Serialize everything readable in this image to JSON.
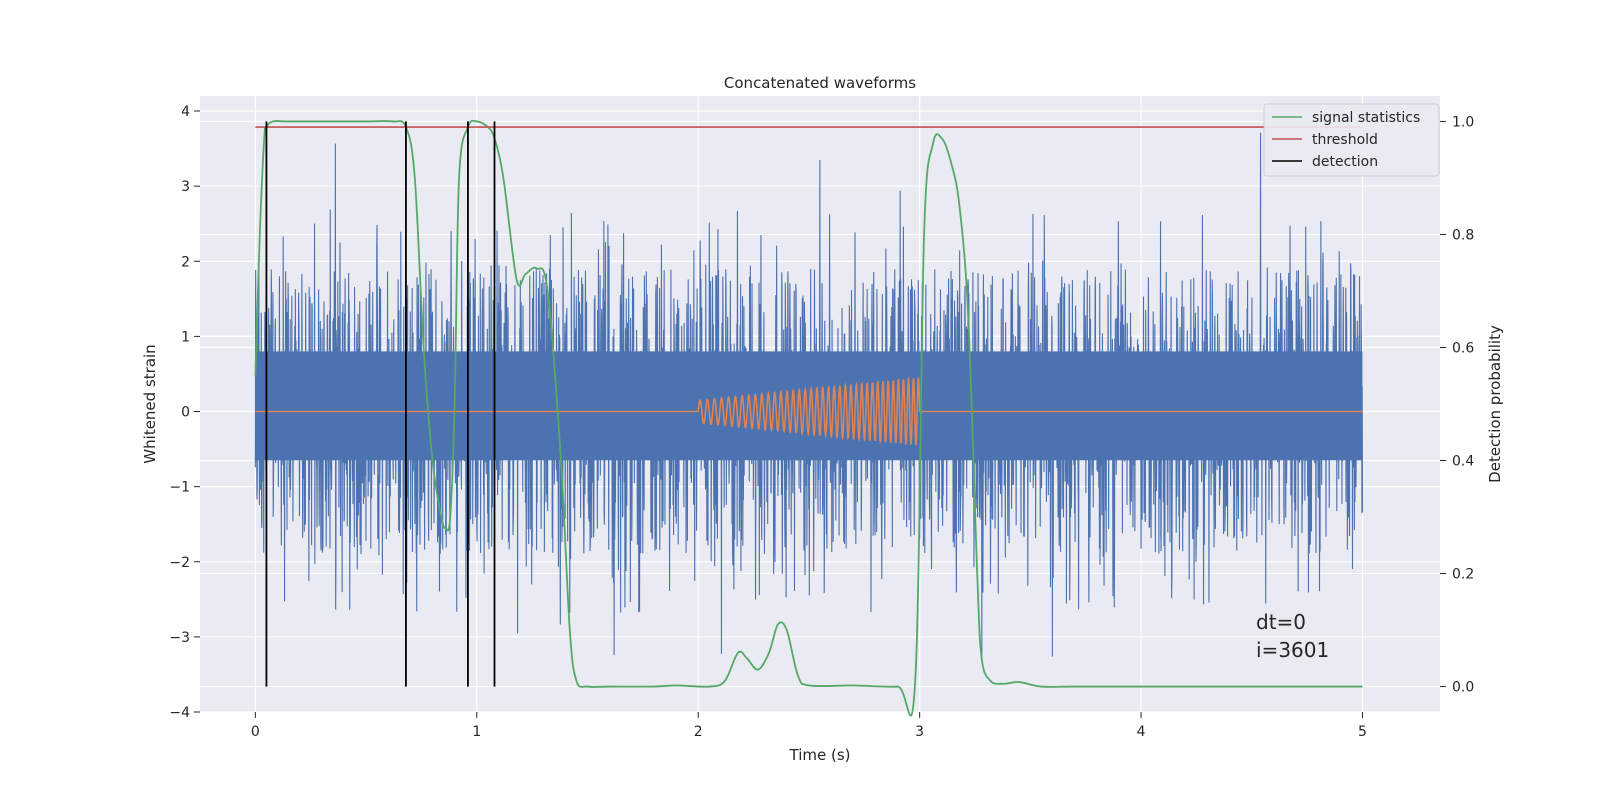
{
  "chart_data": {
    "type": "line",
    "title": "Concatenated waveforms",
    "xlabel": "Time (s)",
    "ylabel": "Whitened strain",
    "ylabel_right": "Detection probability",
    "xlim": [
      -0.25,
      5.35
    ],
    "ylim": [
      -4.0,
      4.2
    ],
    "ylim_right": [
      -0.045,
      1.045
    ],
    "xticks": [
      0,
      1,
      2,
      3,
      4,
      5
    ],
    "xtick_labels": [
      "0",
      "1",
      "2",
      "3",
      "4",
      "5"
    ],
    "yticks": [
      -4,
      -3,
      -2,
      -1,
      0,
      1,
      2,
      3,
      4
    ],
    "ytick_labels": [
      "−4",
      "−3",
      "−2",
      "−1",
      "0",
      "1",
      "2",
      "3",
      "4"
    ],
    "yticks_right": [
      0.0,
      0.2,
      0.4,
      0.6,
      0.8,
      1.0
    ],
    "ytick_labels_right": [
      "0.0",
      "0.2",
      "0.4",
      "0.6",
      "0.8",
      "1.0"
    ],
    "grid": true,
    "legend_position": "top-right",
    "legend": [
      {
        "name": "signal statistics",
        "color": "#55a868"
      },
      {
        "name": "threshold",
        "color": "#c44e52"
      },
      {
        "name": "detection",
        "color": "#000000"
      }
    ],
    "colors": {
      "strain": "#4c72b0",
      "injected_waveform": "#dd8452",
      "signal_statistics": "#55a868",
      "threshold": "#c44e52",
      "detection": "#000000",
      "axes_bg": "#eaeaf2"
    },
    "threshold_value": 0.99,
    "detections_x": [
      0.05,
      0.68,
      0.96,
      1.08
    ],
    "series": [
      {
        "name": "signal statistics",
        "axis": "right",
        "x": [
          0.0,
          0.02,
          0.04,
          0.05,
          0.08,
          0.15,
          0.3,
          0.5,
          0.62,
          0.68,
          0.72,
          0.76,
          0.8,
          0.84,
          0.86,
          0.88,
          0.9,
          0.92,
          0.96,
          1.0,
          1.05,
          1.08,
          1.12,
          1.18,
          1.22,
          1.27,
          1.32,
          1.38,
          1.42,
          1.45,
          1.5,
          1.6,
          1.8,
          1.9,
          2.05,
          2.12,
          2.18,
          2.22,
          2.27,
          2.32,
          2.36,
          2.4,
          2.45,
          2.5,
          2.7,
          2.9,
          2.98,
          3.02,
          3.06,
          3.1,
          3.14,
          3.18,
          3.22,
          3.26,
          3.28,
          3.32,
          3.38,
          3.45,
          3.55,
          3.7,
          4.0,
          4.5,
          5.0
        ],
        "values": [
          0.55,
          0.8,
          0.97,
          0.99,
          1.0,
          1.0,
          1.0,
          1.0,
          1.0,
          0.99,
          0.9,
          0.6,
          0.4,
          0.3,
          0.28,
          0.3,
          0.5,
          0.9,
          0.99,
          1.0,
          0.99,
          0.97,
          0.9,
          0.72,
          0.73,
          0.74,
          0.7,
          0.4,
          0.1,
          0.01,
          0.0,
          0.0,
          0.0,
          0.002,
          0.0,
          0.01,
          0.06,
          0.05,
          0.03,
          0.06,
          0.11,
          0.1,
          0.02,
          0.002,
          0.002,
          0.0,
          0.01,
          0.8,
          0.96,
          0.97,
          0.93,
          0.85,
          0.65,
          0.2,
          0.05,
          0.01,
          0.005,
          0.008,
          0.0,
          0.0,
          0.0,
          0.0,
          0.0
        ]
      },
      {
        "name": "injected waveform",
        "axis": "left",
        "x_start": 2.0,
        "x_end": 3.0,
        "amplitude_start": 0.15,
        "amplitude_end": 0.45,
        "cycles": 30
      },
      {
        "name": "whitened strain",
        "axis": "left",
        "x_range": [
          0,
          5
        ],
        "samples": 4096,
        "dense_band": [
          -0.65,
          0.8
        ],
        "spike_range": [
          -3.65,
          3.82
        ]
      }
    ],
    "annotations": [
      "dt=0",
      "i=3601"
    ]
  }
}
